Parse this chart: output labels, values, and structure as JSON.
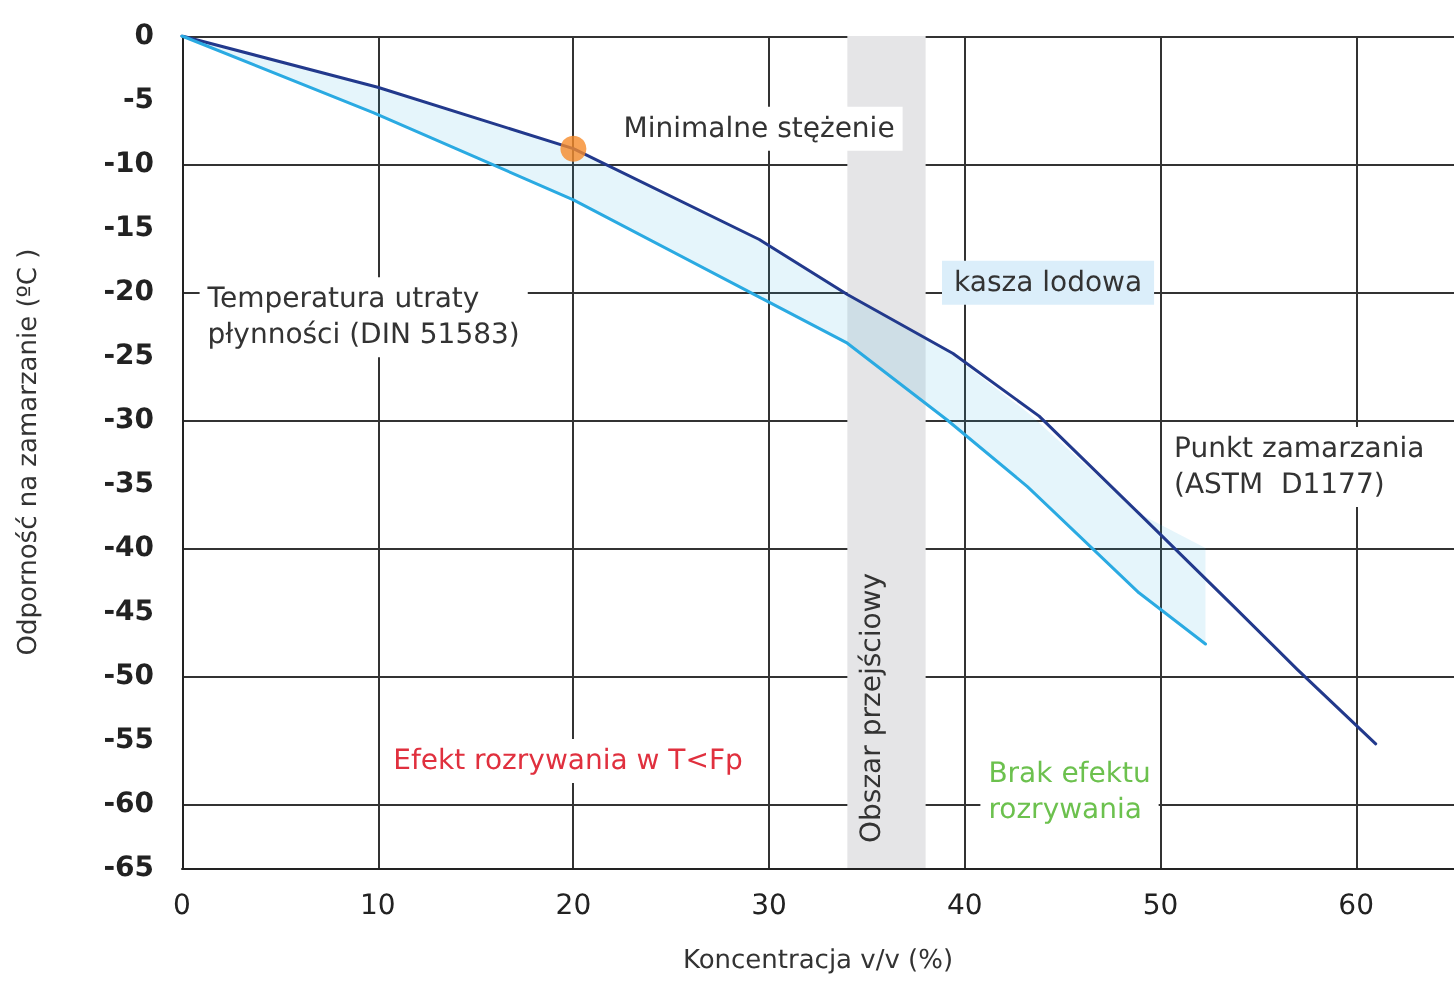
{
  "chart_data": {
    "type": "line",
    "xlabel": "Koncentracja v/v (%)",
    "ylabel": "Odporność na zamarzanie (ºC )",
    "xlim": [
      0,
      65
    ],
    "xticks": [
      0,
      10,
      20,
      30,
      40,
      50,
      60
    ],
    "ylim": [
      -65,
      0
    ],
    "yticks": [
      0,
      -5,
      -10,
      -15,
      -20,
      -25,
      -30,
      -35,
      -40,
      -45,
      -50,
      -55,
      -60,
      -65
    ],
    "grid": true,
    "line_style": "solid",
    "series": [
      {
        "color": "#22398c",
        "x": [
          0,
          10,
          20,
          29.5,
          34,
          39.4,
          43.8,
          48.9,
          53.7,
          57,
          61
        ],
        "values": [
          0,
          -4,
          -8.8,
          -15.9,
          -20.2,
          -24.8,
          -29.7,
          -37.3,
          -44.5,
          -49.5,
          -55.3
        ]
      },
      {
        "color": "#2aaae2",
        "x": [
          0,
          9.8,
          20,
          29.5,
          34,
          39.1,
          43.2,
          48.9,
          52.3
        ],
        "values": [
          0,
          -6,
          -12.8,
          -20.4,
          -24,
          -30,
          -35.2,
          -43.5,
          -47.5
        ],
        "lower": [
          0,
          -6,
          -12.8,
          -20.4,
          -24,
          -30,
          -35.2,
          -43.5,
          -47.5
        ],
        "upper": [
          0,
          -4,
          -8.8,
          -15.9,
          -20.2,
          -24.6,
          -29.4,
          -37.3,
          -40
        ]
      },
      {
        "type": "scatter",
        "color": "#f68b2a",
        "x": [
          20
        ],
        "values": [
          -8.8
        ]
      }
    ],
    "bands": [
      {
        "axis": "x",
        "from": 34,
        "to": 38,
        "label": "Obszar przejściowy",
        "color": "#e5e5e7"
      }
    ],
    "annotations": [
      "Minimalne stężenie",
      "Temperatura utraty\npłynności (DIN 51583)",
      "kasza lodowa",
      "Punkt zamarzania\n(ASTM  D1177)",
      "Efekt rozrywania w T<Fp",
      "Brak efektu\nrozrywania"
    ]
  }
}
